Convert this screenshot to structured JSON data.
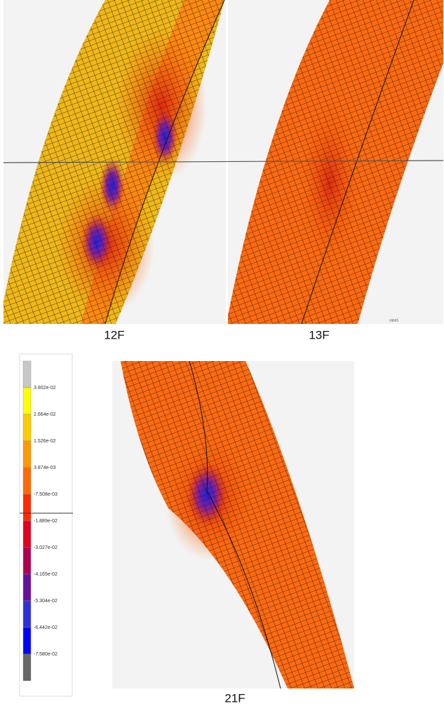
{
  "panels": [
    {
      "label": "12F"
    },
    {
      "label": "13F",
      "note": "case1"
    },
    {
      "label": "21F"
    }
  ],
  "legend": {
    "labels": [
      "3.802e-02",
      "2.664e-02",
      "1.526e-02",
      "3.874e-03",
      "-7.508e-03",
      "-1.889e-02",
      "-3.027e-02",
      "-4.165e-02",
      "-5.304e-02",
      "-6.442e-02",
      "-7.580e-02"
    ],
    "colors": [
      "#c8c8c8",
      "#ffff00",
      "#ffcc00",
      "#ff9900",
      "#ff6a00",
      "#ff2a00",
      "#e00020",
      "#b00050",
      "#6a10a0",
      "#3030d8",
      "#0000ff",
      "#666666"
    ]
  }
}
